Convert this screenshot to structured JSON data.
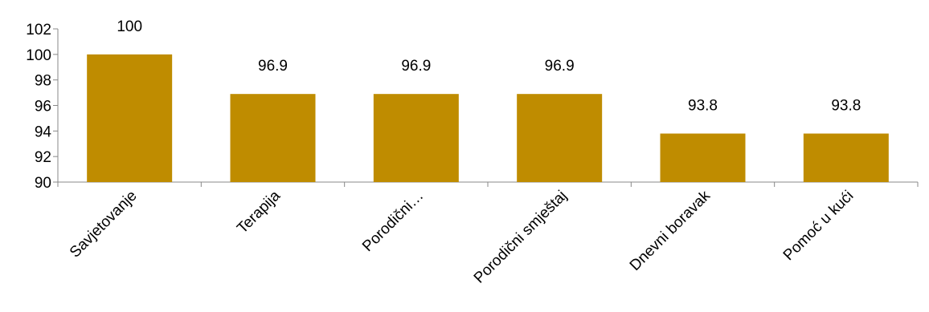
{
  "chart_data": {
    "type": "bar",
    "categories": [
      "Savjetovanje",
      "Terapija",
      "Porodični…",
      "Porodični smještaj",
      "Dnevni boravak",
      "Pomoć u kući"
    ],
    "values": [
      100,
      96.9,
      96.9,
      96.9,
      93.8,
      93.8
    ],
    "data_labels": [
      "100",
      "96.9",
      "96.9",
      "96.9",
      "93.8",
      "93.8"
    ],
    "ylim": [
      90,
      102
    ],
    "yticks": [
      "90",
      "92",
      "94",
      "96",
      "98",
      "100",
      "102"
    ],
    "title": "",
    "xlabel": "",
    "ylabel": "",
    "grid": false,
    "legend": "none",
    "bar_color": "#BF8C00"
  }
}
